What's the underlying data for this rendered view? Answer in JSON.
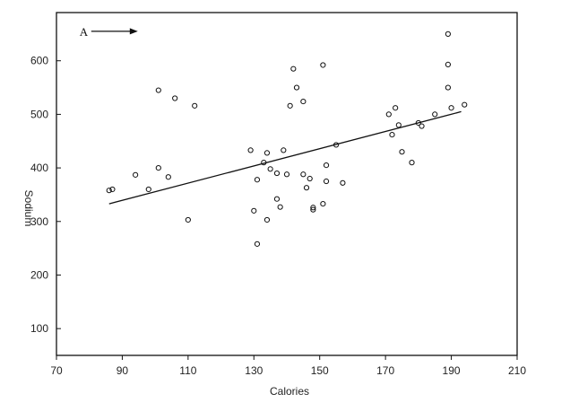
{
  "chart_data": {
    "type": "scatter",
    "title": "",
    "xlabel": "Calories",
    "ylabel": "Sodium",
    "xlim": [
      70,
      210
    ],
    "ylim": [
      50,
      690
    ],
    "xticks": [
      70,
      90,
      110,
      130,
      150,
      170,
      190,
      210
    ],
    "yticks": [
      100,
      200,
      300,
      400,
      500,
      600
    ],
    "grid": false,
    "legend": "none",
    "series": [
      {
        "points": [
          [
            86,
            358
          ],
          [
            87,
            360
          ],
          [
            94,
            387
          ],
          [
            98,
            360
          ],
          [
            101,
            400
          ],
          [
            101,
            545
          ],
          [
            104,
            383
          ],
          [
            106,
            530
          ],
          [
            110,
            303
          ],
          [
            112,
            516
          ],
          [
            129,
            433
          ],
          [
            130,
            320
          ],
          [
            131,
            258
          ],
          [
            131,
            378
          ],
          [
            133,
            410
          ],
          [
            134,
            303
          ],
          [
            134,
            428
          ],
          [
            135,
            398
          ],
          [
            137,
            342
          ],
          [
            137,
            390
          ],
          [
            138,
            327
          ],
          [
            139,
            433
          ],
          [
            140,
            388
          ],
          [
            141,
            516
          ],
          [
            142,
            585
          ],
          [
            143,
            550
          ],
          [
            145,
            524
          ],
          [
            145,
            388
          ],
          [
            146,
            363
          ],
          [
            147,
            380
          ],
          [
            148,
            322
          ],
          [
            148,
            326
          ],
          [
            151,
            333
          ],
          [
            151,
            592
          ],
          [
            152,
            375
          ],
          [
            152,
            405
          ],
          [
            155,
            443
          ],
          [
            157,
            372
          ],
          [
            171,
            500
          ],
          [
            172,
            462
          ],
          [
            173,
            512
          ],
          [
            174,
            480
          ],
          [
            175,
            430
          ],
          [
            178,
            410
          ],
          [
            180,
            484
          ],
          [
            181,
            478
          ],
          [
            185,
            500
          ],
          [
            189,
            650
          ],
          [
            189,
            593
          ],
          [
            189,
            550
          ],
          [
            190,
            512
          ],
          [
            194,
            518
          ]
        ]
      }
    ],
    "regression_line": {
      "x": [
        86,
        193
      ],
      "y": [
        333,
        505
      ]
    },
    "annotations": [
      {
        "text": "A",
        "point": [
          98,
          655
        ]
      }
    ]
  }
}
